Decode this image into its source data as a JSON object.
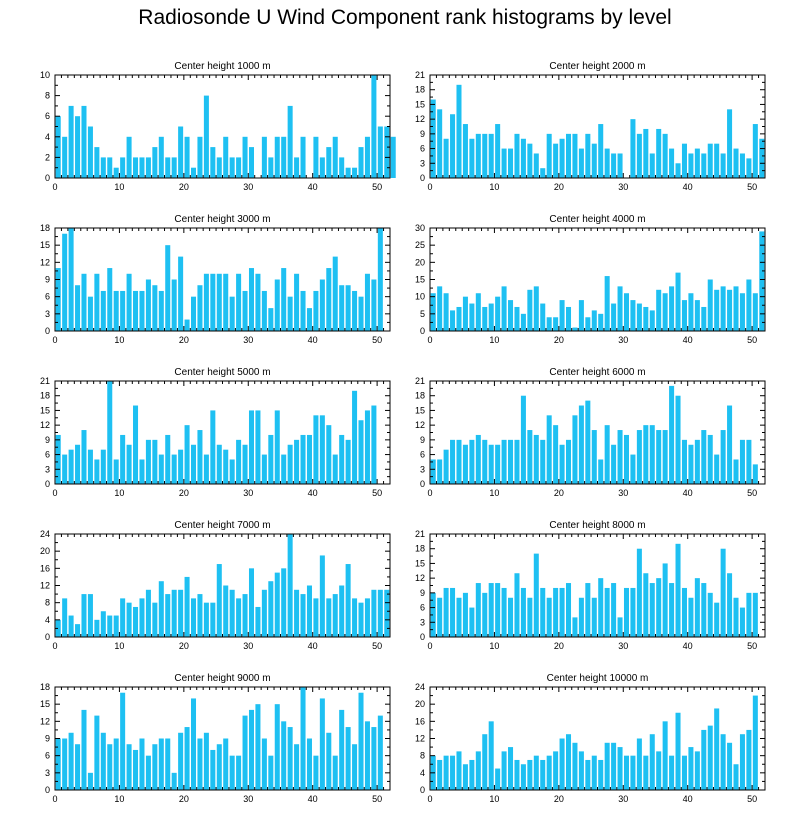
{
  "title": "Radiosonde U Wind Component rank histograms by level",
  "bar_color": "#1ec0f2",
  "chart_data": [
    {
      "type": "bar",
      "title": "Center height 1000 m",
      "xlim": [
        0,
        52
      ],
      "ylim": [
        0,
        10
      ],
      "xticks": [
        0,
        10,
        20,
        30,
        40,
        50
      ],
      "yticks": [
        0,
        2,
        4,
        6,
        8,
        10
      ],
      "values": [
        6,
        4,
        7,
        6,
        7,
        5,
        3,
        2,
        2,
        1,
        2,
        4,
        2,
        2,
        2,
        3,
        4,
        2,
        2,
        5,
        4,
        1,
        4,
        8,
        3,
        2,
        4,
        2,
        2,
        4,
        3,
        0,
        4,
        2,
        4,
        4,
        7,
        2,
        4,
        0,
        4,
        2,
        3,
        4,
        2,
        1,
        1,
        3,
        4,
        10,
        5,
        5,
        4
      ]
    },
    {
      "type": "bar",
      "title": "Center height 2000 m",
      "xlim": [
        0,
        52
      ],
      "ylim": [
        0,
        21
      ],
      "xticks": [
        0,
        10,
        20,
        30,
        40,
        50
      ],
      "yticks": [
        0,
        3,
        6,
        9,
        12,
        15,
        18,
        21
      ],
      "values": [
        16,
        14,
        8,
        13,
        19,
        11,
        8,
        9,
        9,
        9,
        11,
        6,
        6,
        9,
        8,
        7,
        5,
        2,
        9,
        7,
        8,
        9,
        9,
        6,
        9,
        7,
        11,
        6,
        5,
        5,
        0,
        12,
        9,
        10,
        5,
        10,
        9,
        6,
        3,
        7,
        5,
        6,
        5,
        7,
        7,
        5,
        14,
        6,
        5,
        4,
        11,
        8
      ]
    },
    {
      "type": "bar",
      "title": "Center height 3000 m",
      "xlim": [
        0,
        52
      ],
      "ylim": [
        0,
        18
      ],
      "xticks": [
        0,
        10,
        20,
        30,
        40,
        50
      ],
      "yticks": [
        0,
        3,
        6,
        9,
        12,
        15,
        18
      ],
      "values": [
        11,
        17,
        18,
        8,
        10,
        6,
        10,
        7,
        11,
        7,
        7,
        10,
        7,
        7,
        9,
        8,
        7,
        15,
        9,
        13,
        2,
        6,
        8,
        10,
        10,
        10,
        10,
        6,
        10,
        7,
        11,
        10,
        7,
        4,
        9,
        11,
        6,
        10,
        7,
        4,
        7,
        9,
        11,
        13,
        8,
        8,
        7,
        6,
        10,
        9,
        18,
        0
      ]
    },
    {
      "type": "bar",
      "title": "Center height 4000 m",
      "xlim": [
        0,
        52
      ],
      "ylim": [
        0,
        30
      ],
      "xticks": [
        0,
        10,
        20,
        30,
        40,
        50
      ],
      "yticks": [
        0,
        5,
        10,
        15,
        20,
        25,
        30
      ],
      "values": [
        11,
        13,
        11,
        6,
        7,
        10,
        8,
        11,
        7,
        8,
        10,
        13,
        9,
        7,
        5,
        12,
        13,
        8,
        4,
        4,
        9,
        7,
        1,
        9,
        4,
        6,
        5,
        16,
        8,
        13,
        11,
        9,
        8,
        7,
        6,
        12,
        11,
        13,
        17,
        9,
        11,
        9,
        7,
        15,
        12,
        13,
        12,
        13,
        11,
        15,
        11,
        29
      ]
    },
    {
      "type": "bar",
      "title": "Center height 5000 m",
      "xlim": [
        0,
        52
      ],
      "ylim": [
        0,
        21
      ],
      "xticks": [
        0,
        10,
        20,
        30,
        40,
        50
      ],
      "yticks": [
        0,
        3,
        6,
        9,
        12,
        15,
        18,
        21
      ],
      "values": [
        10,
        6,
        7,
        8,
        11,
        7,
        5,
        7,
        21,
        5,
        10,
        8,
        16,
        5,
        9,
        9,
        6,
        10,
        6,
        7,
        12,
        8,
        11,
        6,
        15,
        8,
        7,
        5,
        9,
        8,
        15,
        15,
        6,
        10,
        15,
        6,
        8,
        9,
        10,
        10,
        14,
        14,
        12,
        6,
        10,
        9,
        19,
        13,
        15,
        16
      ]
    },
    {
      "type": "bar",
      "title": "Center height 6000 m",
      "xlim": [
        0,
        52
      ],
      "ylim": [
        0,
        21
      ],
      "xticks": [
        0,
        10,
        20,
        30,
        40,
        50
      ],
      "yticks": [
        0,
        3,
        6,
        9,
        12,
        15,
        18,
        21
      ],
      "values": [
        5,
        5,
        7,
        9,
        9,
        8,
        9,
        10,
        9,
        8,
        8,
        9,
        9,
        9,
        18,
        11,
        10,
        9,
        14,
        12,
        8,
        9,
        14,
        16,
        17,
        11,
        5,
        12,
        8,
        11,
        10,
        6,
        11,
        12,
        12,
        11,
        11,
        20,
        18,
        9,
        8,
        9,
        11,
        10,
        6,
        11,
        16,
        5,
        9,
        9,
        4
      ]
    },
    {
      "type": "bar",
      "title": "Center height 7000 m",
      "xlim": [
        0,
        52
      ],
      "ylim": [
        0,
        24
      ],
      "xticks": [
        0,
        10,
        20,
        30,
        40,
        50
      ],
      "yticks": [
        0,
        4,
        8,
        12,
        16,
        20,
        24
      ],
      "values": [
        4,
        9,
        5,
        3,
        10,
        10,
        4,
        6,
        5,
        5,
        9,
        8,
        7,
        9,
        11,
        8,
        13,
        10,
        11,
        11,
        14,
        9,
        10,
        8,
        8,
        17,
        12,
        11,
        9,
        10,
        16,
        7,
        11,
        13,
        15,
        16,
        24,
        11,
        10,
        12,
        9,
        19,
        9,
        10,
        12,
        17,
        9,
        8,
        9,
        11,
        11,
        11
      ]
    },
    {
      "type": "bar",
      "title": "Center height 8000 m",
      "xlim": [
        0,
        52
      ],
      "ylim": [
        0,
        21
      ],
      "xticks": [
        0,
        10,
        20,
        30,
        40,
        50
      ],
      "yticks": [
        0,
        3,
        6,
        9,
        12,
        15,
        18,
        21
      ],
      "values": [
        9,
        8,
        10,
        10,
        8,
        9,
        6,
        11,
        9,
        11,
        11,
        10,
        8,
        13,
        10,
        8,
        17,
        10,
        8,
        10,
        10,
        11,
        4,
        8,
        11,
        8,
        12,
        10,
        11,
        4,
        10,
        10,
        18,
        13,
        11,
        12,
        15,
        11,
        19,
        10,
        8,
        12,
        11,
        9,
        7,
        18,
        13,
        8,
        6,
        9,
        9
      ]
    },
    {
      "type": "bar",
      "title": "Center height 9000 m",
      "xlim": [
        0,
        52
      ],
      "ylim": [
        0,
        18
      ],
      "xticks": [
        0,
        10,
        20,
        30,
        40,
        50
      ],
      "yticks": [
        0,
        3,
        6,
        9,
        12,
        15,
        18
      ],
      "values": [
        9,
        9,
        10,
        8,
        14,
        3,
        13,
        10,
        8,
        9,
        17,
        8,
        7,
        9,
        6,
        8,
        9,
        9,
        3,
        10,
        11,
        16,
        9,
        10,
        7,
        8,
        9,
        6,
        6,
        13,
        14,
        15,
        9,
        6,
        15,
        12,
        11,
        8,
        18,
        9,
        6,
        16,
        10,
        6,
        14,
        11,
        8,
        17,
        12,
        11,
        13
      ]
    },
    {
      "type": "bar",
      "title": "Center height 10000 m",
      "xlim": [
        0,
        52
      ],
      "ylim": [
        0,
        24
      ],
      "xticks": [
        0,
        10,
        20,
        30,
        40,
        50
      ],
      "yticks": [
        0,
        4,
        8,
        12,
        16,
        20,
        24
      ],
      "values": [
        8,
        7,
        8,
        8,
        9,
        6,
        7,
        9,
        13,
        16,
        5,
        9,
        10,
        7,
        6,
        7,
        8,
        7,
        8,
        9,
        12,
        13,
        11,
        9,
        7,
        8,
        7,
        11,
        11,
        10,
        8,
        8,
        12,
        8,
        13,
        9,
        16,
        8,
        18,
        8,
        10,
        9,
        14,
        15,
        19,
        13,
        11,
        6,
        13,
        14,
        22
      ]
    }
  ]
}
